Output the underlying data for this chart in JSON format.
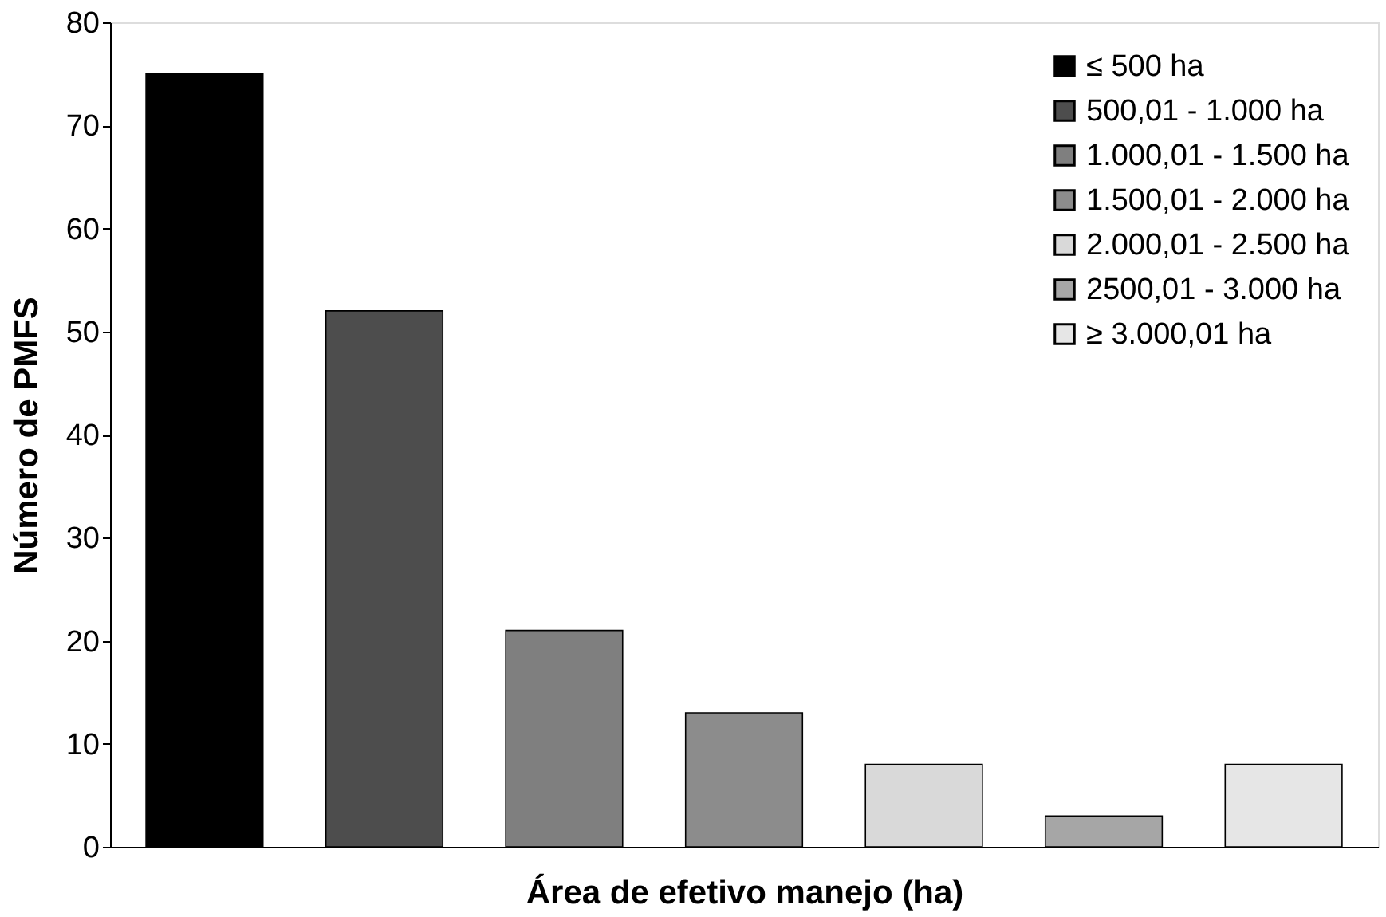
{
  "chart_data": {
    "type": "bar",
    "xlabel": "Área de efetivo manejo (ha)",
    "ylabel": "Número de PMFS",
    "categories": [
      null,
      null,
      null,
      null,
      null,
      null,
      null
    ],
    "series": [
      {
        "name": "≤ 500 ha",
        "color": "#000000",
        "values": [
          75,
          null,
          null,
          null,
          null,
          null,
          null
        ]
      },
      {
        "name": "500,01 - 1.000 ha",
        "color": "#4d4d4d",
        "values": [
          null,
          52,
          null,
          null,
          null,
          null,
          null
        ]
      },
      {
        "name": "1.000,01 - 1.500 ha",
        "color": "#7f7f7f",
        "values": [
          null,
          null,
          21,
          null,
          null,
          null,
          null
        ]
      },
      {
        "name": "1.500,01 - 2.000 ha",
        "color": "#8c8c8c",
        "values": [
          null,
          null,
          null,
          13,
          null,
          null,
          null
        ]
      },
      {
        "name": "2.000,01 - 2.500 ha",
        "color": "#d9d9d9",
        "values": [
          null,
          null,
          null,
          null,
          8,
          null,
          null
        ]
      },
      {
        "name": "2500,01 - 3.000 ha",
        "color": "#a6a6a6",
        "values": [
          null,
          null,
          null,
          null,
          null,
          3,
          null
        ]
      },
      {
        "name": "≥ 3.000,01 ha",
        "color": "#e6e6e6",
        "values": [
          null,
          null,
          null,
          null,
          null,
          null,
          8
        ]
      }
    ],
    "ylim": [
      0,
      80
    ],
    "yticks": [
      0,
      10,
      20,
      30,
      40,
      50,
      60,
      70,
      80
    ],
    "grid": false,
    "legend": "top right",
    "tick_labels": "y"
  }
}
